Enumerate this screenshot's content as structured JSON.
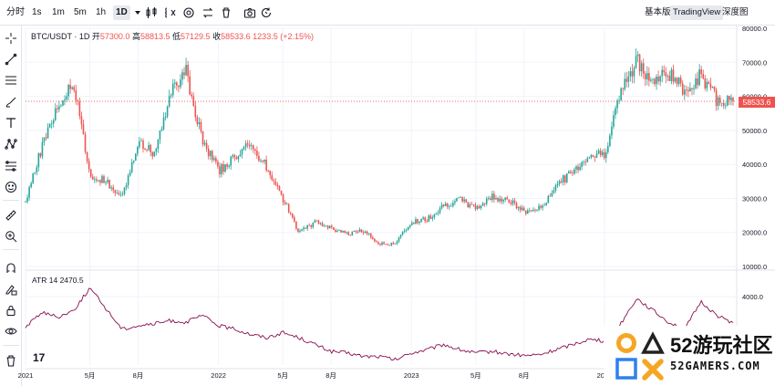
{
  "toolbar": {
    "timeframes": [
      {
        "label": "分时",
        "active": false
      },
      {
        "label": "1s",
        "active": false
      },
      {
        "label": "1m",
        "active": false
      },
      {
        "label": "5m",
        "active": false
      },
      {
        "label": "1h",
        "active": false
      },
      {
        "label": "1D",
        "active": true
      }
    ],
    "icons": [
      "chevron-down-icon",
      "candles-icon",
      "indicator-icon",
      "settings-icon",
      "compare-icon",
      "trash-icon",
      "camera-icon",
      "refresh-icon"
    ],
    "views": [
      {
        "label": "基本版",
        "active": false
      },
      {
        "label": "TradingView",
        "active": true
      },
      {
        "label": "深度图",
        "active": false
      }
    ]
  },
  "sidebar": {
    "icons": [
      "crosshair-icon",
      "trend-line-icon",
      "horizontal-lines-icon",
      "brush-icon",
      "text-icon",
      "pattern-icon",
      "fib-icon",
      "emoji-icon",
      "ruler-icon",
      "zoom-in-icon",
      "magnet-icon",
      "pencil-lock-icon",
      "lock-icon",
      "eye-icon",
      "trash-icon"
    ]
  },
  "legend": {
    "symbol": "BTC/USDT · 1D",
    "open_label": "开",
    "open": "57300.0",
    "high_label": "高",
    "high": "58813.5",
    "low_label": "低",
    "low": "57129.5",
    "close_label": "收",
    "close": "58533.6",
    "change": "1233.5 (+2.15%)"
  },
  "atr_legend": {
    "name": "ATR 14",
    "value": "2470.5"
  },
  "price_badge": "58533.6",
  "colors": {
    "up": "#26a69a",
    "down": "#ef5350",
    "atr": "#880e4f",
    "grid": "#f0f3fa"
  },
  "chart_data": [
    {
      "type": "candlestick",
      "title": "BTC/USDT · 1D",
      "ylim": [
        10000,
        80000
      ],
      "y_ticks": [
        "80000.0",
        "70000.0",
        "60000.0",
        "50000.0",
        "40000.0",
        "30000.0",
        "20000.0",
        "10000.0"
      ],
      "x_ticks": [
        "2021",
        "5月",
        "8月",
        "2022",
        "5月",
        "8月",
        "2023",
        "5月",
        "8月",
        "2024"
      ],
      "approx_close_path": [
        [
          "2021-01",
          29000
        ],
        [
          "2021-02",
          45000
        ],
        [
          "2021-03",
          58000
        ],
        [
          "2021-04",
          63000
        ],
        [
          "2021-05",
          37000
        ],
        [
          "2021-06",
          35000
        ],
        [
          "2021-07",
          30000
        ],
        [
          "2021-08",
          47000
        ],
        [
          "2021-09",
          43000
        ],
        [
          "2021-10",
          61000
        ],
        [
          "2021-11",
          67000
        ],
        [
          "2021-12",
          47000
        ],
        [
          "2022-01",
          38000
        ],
        [
          "2022-02",
          42000
        ],
        [
          "2022-03",
          46000
        ],
        [
          "2022-04",
          39000
        ],
        [
          "2022-05",
          30000
        ],
        [
          "2022-06",
          20000
        ],
        [
          "2022-07",
          23000
        ],
        [
          "2022-08",
          21000
        ],
        [
          "2022-09",
          19500
        ],
        [
          "2022-10",
          20500
        ],
        [
          "2022-11",
          16500
        ],
        [
          "2022-12",
          16800
        ],
        [
          "2023-01",
          23000
        ],
        [
          "2023-02",
          24000
        ],
        [
          "2023-03",
          28000
        ],
        [
          "2023-04",
          29500
        ],
        [
          "2023-05",
          27000
        ],
        [
          "2023-06",
          30500
        ],
        [
          "2023-07",
          29500
        ],
        [
          "2023-08",
          26000
        ],
        [
          "2023-09",
          27000
        ],
        [
          "2023-10",
          34000
        ],
        [
          "2023-11",
          37500
        ],
        [
          "2023-12",
          42500
        ],
        [
          "2024-01",
          43000
        ],
        [
          "2024-02",
          61000
        ],
        [
          "2024-03",
          71000
        ],
        [
          "2024-04",
          64000
        ],
        [
          "2024-05",
          67000
        ],
        [
          "2024-06",
          62000
        ],
        [
          "2024-07",
          66000
        ],
        [
          "2024-08",
          59000
        ],
        [
          "2024-09",
          58533.6
        ]
      ],
      "last_price": 58533.6
    },
    {
      "type": "line",
      "title": "ATR 14",
      "ylim": [
        0,
        4800
      ],
      "y_ticks": [
        "4000.0"
      ],
      "approx_values": [
        [
          "2021-01",
          2200
        ],
        [
          "2021-02",
          3100
        ],
        [
          "2021-03",
          2800
        ],
        [
          "2021-04",
          3200
        ],
        [
          "2021-05",
          4500
        ],
        [
          "2021-06",
          3300
        ],
        [
          "2021-07",
          2100
        ],
        [
          "2021-08",
          2300
        ],
        [
          "2021-09",
          2400
        ],
        [
          "2021-10",
          2600
        ],
        [
          "2021-11",
          2500
        ],
        [
          "2021-12",
          2900
        ],
        [
          "2022-01",
          2300
        ],
        [
          "2022-02",
          2100
        ],
        [
          "2022-03",
          1800
        ],
        [
          "2022-04",
          1600
        ],
        [
          "2022-05",
          1900
        ],
        [
          "2022-06",
          1600
        ],
        [
          "2022-07",
          1200
        ],
        [
          "2022-08",
          800
        ],
        [
          "2022-09",
          700
        ],
        [
          "2022-10",
          500
        ],
        [
          "2022-11",
          500
        ],
        [
          "2022-12",
          300
        ],
        [
          "2023-01",
          700
        ],
        [
          "2023-02",
          900
        ],
        [
          "2023-03",
          1200
        ],
        [
          "2023-04",
          900
        ],
        [
          "2023-05",
          700
        ],
        [
          "2023-06",
          800
        ],
        [
          "2023-07",
          650
        ],
        [
          "2023-08",
          550
        ],
        [
          "2023-09",
          600
        ],
        [
          "2023-10",
          900
        ],
        [
          "2023-11",
          1200
        ],
        [
          "2023-12",
          1500
        ],
        [
          "2024-01",
          1400
        ],
        [
          "2024-02",
          2400
        ],
        [
          "2024-03",
          3900
        ],
        [
          "2024-04",
          3200
        ],
        [
          "2024-05",
          2500
        ],
        [
          "2024-06",
          2100
        ],
        [
          "2024-07",
          3700
        ],
        [
          "2024-08",
          2900
        ],
        [
          "2024-09",
          2470.5
        ]
      ]
    }
  ],
  "watermark": {
    "cn": "52游玩社区",
    "en": "52GAMERS.COM"
  }
}
